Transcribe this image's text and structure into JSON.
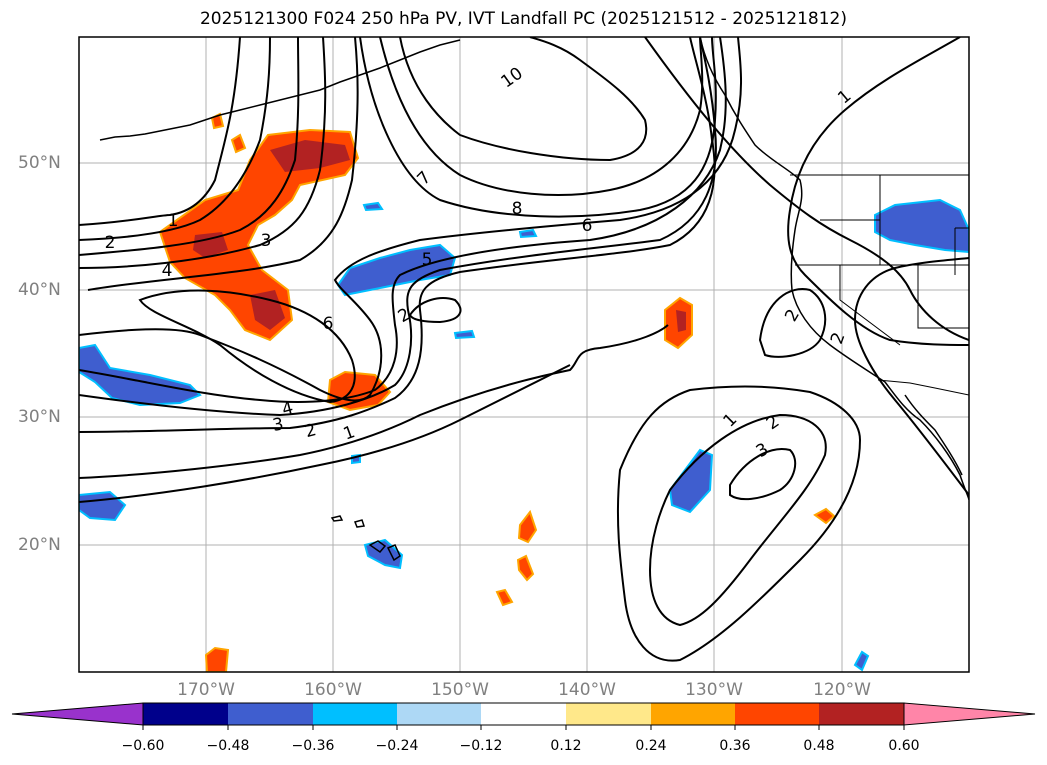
{
  "title": "2025121300 F024 250 hPa PV, IVT Landfall PC (2025121512 - 2025121812)",
  "map": {
    "projection": "PlateCarree",
    "lon_range": [
      -180,
      -110
    ],
    "lat_range": [
      10,
      60
    ],
    "gridlines": true,
    "lat_labels": [
      "50°N",
      "40°N",
      "30°N",
      "20°N"
    ],
    "lon_labels": [
      "170°W",
      "160°W",
      "150°W",
      "140°W",
      "130°W",
      "120°W"
    ],
    "colors": {
      "coastline": "#000000",
      "gridline": "#b0b0b0",
      "contour": "#000000",
      "neg_strong": "#3f5ecf",
      "neg_light": "#00bfff",
      "pos_mid": "#ff4500",
      "pos_strong": "#b22222",
      "pos_edge": "#ffa500"
    }
  },
  "contour_labels": [
    {
      "text": "10"
    },
    {
      "text": "7"
    },
    {
      "text": "8"
    },
    {
      "text": "6"
    },
    {
      "text": "1"
    },
    {
      "text": "2"
    },
    {
      "text": "3"
    },
    {
      "text": "4"
    },
    {
      "text": "1"
    },
    {
      "text": "5"
    },
    {
      "text": "2"
    },
    {
      "text": "6"
    },
    {
      "text": "4"
    },
    {
      "text": "3"
    },
    {
      "text": "2"
    },
    {
      "text": "1"
    },
    {
      "text": "1"
    },
    {
      "text": "2"
    },
    {
      "text": "2"
    },
    {
      "text": "2"
    },
    {
      "text": "3"
    }
  ],
  "colorbar": {
    "colors": [
      "#9932cc",
      "#00008b",
      "#3f5ecf",
      "#00bfff",
      "#add8f5",
      "#ffffff",
      "#ffe88a",
      "#ffa500",
      "#ff4500",
      "#b22222",
      "#ff85a8"
    ],
    "ticks": [
      "−0.60",
      "−0.48",
      "−0.36",
      "−0.24",
      "−0.12",
      "0.12",
      "0.24",
      "0.36",
      "0.48",
      "0.60"
    ]
  }
}
